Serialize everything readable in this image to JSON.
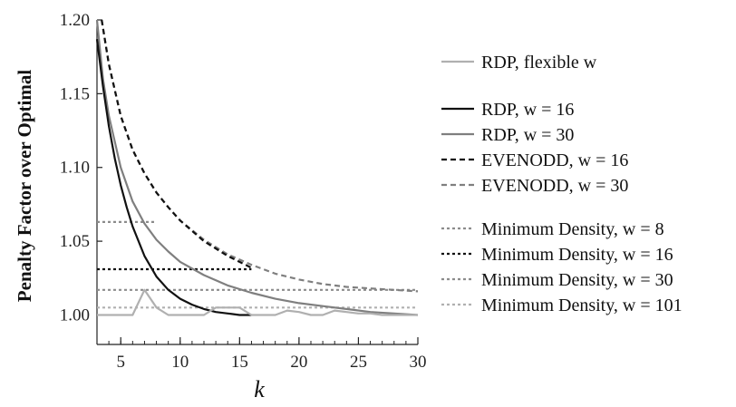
{
  "chart_data": {
    "type": "line",
    "title": "",
    "xlabel": "k",
    "ylabel": "Penalty Factor over Optimal",
    "xlim": [
      3,
      30
    ],
    "ylim": [
      0.98,
      1.2
    ],
    "xticks": [
      5,
      10,
      15,
      20,
      25,
      30
    ],
    "yticks": [
      1.0,
      1.05,
      1.1,
      1.15,
      1.2
    ],
    "xtick_labels": [
      "5",
      "10",
      "15",
      "20",
      "25",
      "30"
    ],
    "ytick_labels": [
      "1.00",
      "1.05",
      "1.10",
      "1.15",
      "1.20"
    ],
    "grid": false,
    "legend_position": "right",
    "series": [
      {
        "name": "RDP, flexible w",
        "color": "#b0b0b0",
        "dash": "solid",
        "x": [
          3,
          4,
          5,
          6,
          7,
          8,
          9,
          10,
          11,
          12,
          13,
          14,
          15,
          16,
          17,
          18,
          19,
          20,
          21,
          22,
          23,
          24,
          25,
          26,
          27,
          28,
          29,
          30
        ],
        "y": [
          1.0,
          1.0,
          1.0,
          1.0,
          1.017,
          1.005,
          1.0,
          1.0,
          1.0,
          1.0,
          1.005,
          1.005,
          1.005,
          1.0,
          1.0,
          1.0,
          1.003,
          1.002,
          1.0,
          1.0,
          1.003,
          1.002,
          1.001,
          1.001,
          1.0,
          1.0,
          1.0,
          1.0
        ]
      },
      {
        "name": "RDP, w = 16",
        "color": "#111111",
        "dash": "solid",
        "x": [
          3,
          3.5,
          4,
          4.5,
          5,
          5.5,
          6,
          7,
          8,
          9,
          10,
          11,
          12,
          13,
          14,
          15,
          16
        ],
        "y": [
          1.187,
          1.155,
          1.128,
          1.106,
          1.088,
          1.073,
          1.06,
          1.04,
          1.026,
          1.017,
          1.011,
          1.007,
          1.004,
          1.002,
          1.001,
          1.0,
          1.0
        ]
      },
      {
        "name": "RDP, w = 30",
        "color": "#7f7f7f",
        "dash": "solid",
        "x": [
          3,
          3.5,
          4,
          5,
          6,
          7,
          8,
          9,
          10,
          12,
          14,
          16,
          18,
          20,
          22,
          24,
          26,
          28,
          30
        ],
        "y": [
          1.2,
          1.16,
          1.135,
          1.1,
          1.077,
          1.062,
          1.051,
          1.043,
          1.036,
          1.027,
          1.02,
          1.015,
          1.011,
          1.008,
          1.006,
          1.004,
          1.002,
          1.001,
          1.0
        ]
      },
      {
        "name": "EVENODD, w = 16",
        "color": "#111111",
        "dash": "dashed",
        "x": [
          3.4,
          4,
          5,
          6,
          7,
          8,
          9,
          10,
          11,
          12,
          13,
          14,
          15,
          16
        ],
        "y": [
          1.2,
          1.17,
          1.135,
          1.112,
          1.096,
          1.083,
          1.073,
          1.064,
          1.057,
          1.05,
          1.045,
          1.04,
          1.036,
          1.032
        ]
      },
      {
        "name": "EVENODD, w = 30",
        "color": "#7f7f7f",
        "dash": "dashed",
        "x": [
          3.4,
          4,
          5,
          6,
          7,
          8,
          9,
          10,
          12,
          14,
          16,
          18,
          20,
          22,
          24,
          26,
          28,
          30
        ],
        "y": [
          1.2,
          1.17,
          1.135,
          1.112,
          1.096,
          1.083,
          1.073,
          1.064,
          1.051,
          1.041,
          1.034,
          1.028,
          1.024,
          1.021,
          1.019,
          1.018,
          1.017,
          1.016
        ]
      },
      {
        "name": "Minimum Density, w = 8",
        "color": "#8c8c8c",
        "dash": "dotted",
        "x": [
          3,
          8
        ],
        "y": [
          1.063,
          1.063
        ]
      },
      {
        "name": "Minimum Density, w = 16",
        "color": "#111111",
        "dash": "dotted",
        "x": [
          3,
          16
        ],
        "y": [
          1.031,
          1.031
        ]
      },
      {
        "name": "Minimum Density, w = 30",
        "color": "#8c8c8c",
        "dash": "dotted",
        "x": [
          3,
          30
        ],
        "y": [
          1.017,
          1.017
        ]
      },
      {
        "name": "Minimum Density, w = 101",
        "color": "#b0b0b0",
        "dash": "dotted",
        "x": [
          3,
          30
        ],
        "y": [
          1.005,
          1.005
        ]
      }
    ],
    "legend_groups": [
      [
        0
      ],
      [
        1,
        2,
        3,
        4
      ],
      [
        5,
        6,
        7,
        8
      ]
    ]
  }
}
